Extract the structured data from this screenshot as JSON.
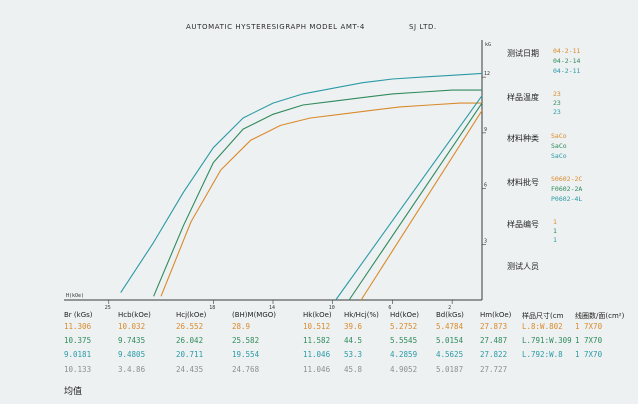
{
  "header": {
    "title": "AUTOMATIC HYSTERESIGRAPH MODEL AMT-4",
    "company": "SJ LTD."
  },
  "colors": {
    "s1": "#d98a2c",
    "s2": "#2f8a5e",
    "s3": "#2a9aa6",
    "avg": "#8a8f94",
    "axis": "#3a3a3a"
  },
  "chart_data": {
    "type": "line",
    "title": "AUTOMATIC HYSTERESIGRAPH MODEL AMT-4",
    "xlabel": "H(kOe)",
    "ylabel": "",
    "y_right_top_label": "kG",
    "x_ticks": [
      "25",
      "18",
      "14",
      "10",
      "6",
      "2"
    ],
    "y_ticks": [
      "12",
      "9",
      "6",
      "3"
    ],
    "xlim": [
      28,
      0
    ],
    "ylim": [
      0,
      14
    ],
    "series": [
      {
        "color": "s3",
        "x": [
          24.2,
          22.0,
          20.0,
          18.0,
          16.0,
          14.0,
          12.0,
          10.0,
          8.0,
          6.0,
          4.0,
          2.0,
          0.0
        ],
        "y": [
          0.4,
          3.1,
          5.8,
          8.2,
          9.8,
          10.6,
          11.1,
          11.4,
          11.7,
          11.9,
          12.0,
          12.1,
          12.2
        ]
      },
      {
        "color": "s2",
        "x": [
          22.0,
          20.0,
          18.0,
          16.0,
          14.0,
          12.0,
          10.0,
          8.0,
          6.0,
          4.0,
          2.0,
          0.0
        ],
        "y": [
          0.2,
          4.0,
          7.4,
          9.2,
          10.0,
          10.5,
          10.7,
          10.9,
          11.1,
          11.2,
          11.3,
          11.3
        ]
      },
      {
        "color": "s1",
        "x": [
          21.5,
          19.5,
          17.5,
          15.5,
          13.5,
          11.5,
          9.5,
          7.5,
          5.5,
          3.5,
          1.5,
          0.0
        ],
        "y": [
          0.2,
          4.2,
          7.0,
          8.6,
          9.4,
          9.8,
          10.0,
          10.2,
          10.4,
          10.5,
          10.6,
          10.6
        ]
      },
      {
        "color": "s3",
        "x": [
          9.8,
          0.0
        ],
        "y": [
          0.0,
          11.0
        ]
      },
      {
        "color": "s2",
        "x": [
          8.9,
          0.0
        ],
        "y": [
          0.0,
          10.6
        ]
      },
      {
        "color": "s1",
        "x": [
          8.1,
          0.0
        ],
        "y": [
          0.0,
          10.2
        ]
      }
    ]
  },
  "right_panel": {
    "test_date_label": "测试日期",
    "test_dates": [
      "04-2-11",
      "04-2-14",
      "04-2-11"
    ],
    "temp_label": "样品温度",
    "temps": [
      "23",
      "23",
      "23"
    ],
    "material_label": "材料种类",
    "materials": [
      "SaCo",
      "SaCo",
      "SaCo"
    ],
    "batch_label": "材料批号",
    "batches": [
      "S0602-2C",
      "F0602-2A",
      "P0602-4L"
    ],
    "sample_label": "样品编号",
    "samples": [
      "1",
      "1",
      "1"
    ],
    "operator_label": "测试人员"
  },
  "table": {
    "headers": [
      "Br (kGs)",
      "Hcb(kOe)",
      "Hcj(kOe)",
      "(BH)M(MGO)",
      "Hk(kOe)",
      "Hk/Hcj(%)",
      "Hd(kOe)",
      "Bd(kGs)",
      "Hm(kOe)",
      "样品尺寸(cm",
      "线圈数/面(cm²)"
    ],
    "rows": [
      {
        "color": "s1",
        "cells": [
          "11.306",
          "10.032",
          "26.552",
          "28.9",
          "10.512",
          "39.6",
          "5.2752",
          "5.4784",
          "27.873",
          "L.8:W.802",
          "1 7X70"
        ]
      },
      {
        "color": "s2",
        "cells": [
          "10.375",
          "9.7435",
          "26.042",
          "25.582",
          "11.582",
          "44.5",
          "5.5545",
          "5.0154",
          "27.487",
          "L.791:W.309",
          "1 7X70"
        ]
      },
      {
        "color": "s3",
        "cells": [
          "9.0181",
          "9.4805",
          "20.711",
          "19.554",
          "11.046",
          "53.3",
          "4.2859",
          "4.5625",
          "27.822",
          "L.792:W.8",
          "1 7X70"
        ]
      },
      {
        "color": "avg",
        "cells": [
          "10.133",
          "3.4.86",
          "24.435",
          "24.768",
          "11.046",
          "45.8",
          "4.9052",
          "5.0187",
          "27.727",
          "",
          ""
        ]
      }
    ],
    "avg_label": "均值"
  }
}
